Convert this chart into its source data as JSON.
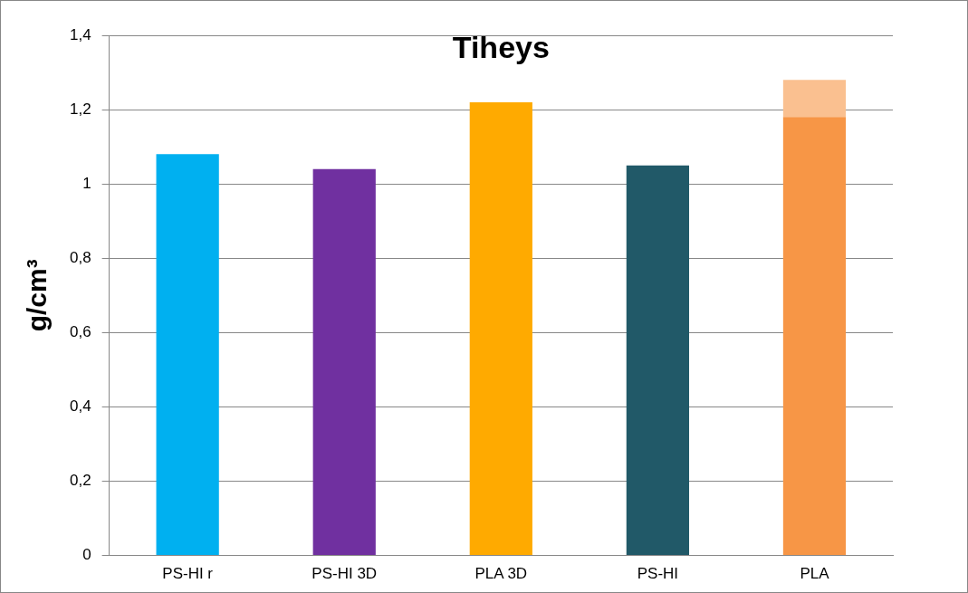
{
  "chart_data": {
    "type": "bar",
    "title": "Tiheys",
    "ylabel": "g/cm³",
    "stacked": true,
    "categories": [
      "PS-HI r",
      "PS-HI 3D",
      "PLA 3D",
      "PS-HI",
      "PLA"
    ],
    "series": [
      {
        "colors": [
          "#00b0f0",
          "#7030a0",
          "#ffaa00",
          "#215968",
          "#f79646"
        ],
        "values": [
          1.08,
          1.04,
          1.22,
          1.05,
          1.18
        ]
      },
      {
        "color": "#fac090",
        "values": [
          null,
          null,
          null,
          null,
          0.1
        ]
      }
    ],
    "ylim": [
      0,
      1.4
    ],
    "yticks": [
      {
        "value": 0,
        "label": "0"
      },
      {
        "value": 0.2,
        "label": "0,2"
      },
      {
        "value": 0.4,
        "label": "0,4"
      },
      {
        "value": 0.6,
        "label": "0,6"
      },
      {
        "value": 0.8,
        "label": "0,8"
      },
      {
        "value": 1,
        "label": "1"
      },
      {
        "value": 1.2,
        "label": "1,2"
      },
      {
        "value": 1.4,
        "label": "1,4"
      }
    ],
    "grid": "y",
    "legend": false
  }
}
